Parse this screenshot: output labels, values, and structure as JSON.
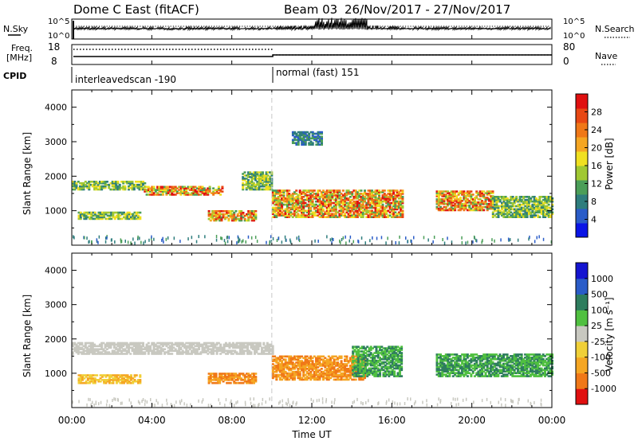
{
  "header": {
    "title": "Dome C East (fitACF)",
    "beam": "Beam 03",
    "dates": "26/Nov/2017 - 27/Nov/2017"
  },
  "top_panel": {
    "nsky_label": "N.Sky",
    "left_tick_top": "10^5",
    "left_tick_bottom": "10^0",
    "right_tick_top": "10^5",
    "right_tick_bottom": "10^0",
    "nsearch_label": "N.Search"
  },
  "freq_panel": {
    "label_line1": "Freq.",
    "label_line2": "[MHz]",
    "left_tick_top": "18",
    "left_tick_bottom": "8",
    "right_tick_top": "80",
    "right_tick_bottom": "0",
    "nave_label": "Nave"
  },
  "cpid": {
    "label": "CPID",
    "segment1": "interleavedscan -190",
    "segment2": "normal (fast) 151"
  },
  "power_panel": {
    "ylabel": "Slant Range [km]",
    "yticks": [
      "1000",
      "2000",
      "3000",
      "4000"
    ],
    "colorbar_label": "Power [dB]",
    "colorbar_ticks": [
      "4",
      "8",
      "12",
      "16",
      "20",
      "24",
      "28"
    ],
    "colors": [
      "#0a14e6",
      "#2a5cc8",
      "#2e7d7d",
      "#4b9e58",
      "#a0c832",
      "#f0e020",
      "#f5a623",
      "#f07818",
      "#e84814",
      "#e01010"
    ]
  },
  "velocity_panel": {
    "ylabel": "Slant Range [km]",
    "yticks": [
      "1000",
      "2000",
      "3000",
      "4000"
    ],
    "colorbar_label": "Velocity [m s⁻¹]",
    "colorbar_ticks": [
      "-1000",
      "-500",
      "-100",
      "-25",
      "25",
      "100",
      "500",
      "1000"
    ],
    "colors": [
      "#e01010",
      "#f07818",
      "#f5a623",
      "#f0d038",
      "#c8c8c0",
      "#50c040",
      "#2e7d5e",
      "#2a5cc8",
      "#1414d0"
    ]
  },
  "xaxis": {
    "ticks": [
      "00:00",
      "04:00",
      "08:00",
      "12:00",
      "16:00",
      "20:00",
      "00:00"
    ],
    "label": "Time UT"
  },
  "chart_data": {
    "type": "heatmap",
    "x_unit": "hours UT",
    "xlim": [
      0,
      24
    ],
    "ylim": [
      0,
      4500
    ],
    "mode_change_hour": 10,
    "power_regions": [
      {
        "t": [
          0,
          3.6
        ],
        "r": [
          1600,
          1850
        ],
        "level": "medium"
      },
      {
        "t": [
          3.6,
          7.5
        ],
        "r": [
          1450,
          1700
        ],
        "level": "high"
      },
      {
        "t": [
          0.3,
          3.4
        ],
        "r": [
          750,
          950
        ],
        "level": "medium"
      },
      {
        "t": [
          6.8,
          9.2
        ],
        "r": [
          700,
          1000
        ],
        "level": "high"
      },
      {
        "t": [
          8.5,
          10
        ],
        "r": [
          1600,
          2100
        ],
        "level": "medium"
      },
      {
        "t": [
          10,
          16.5
        ],
        "r": [
          800,
          1600
        ],
        "level": "high"
      },
      {
        "t": [
          11,
          12.5
        ],
        "r": [
          2900,
          3300
        ],
        "level": "low"
      },
      {
        "t": [
          18.2,
          21
        ],
        "r": [
          1000,
          1550
        ],
        "level": "high"
      },
      {
        "t": [
          21,
          24
        ],
        "r": [
          800,
          1400
        ],
        "level": "medium"
      }
    ],
    "velocity_regions": [
      {
        "t": [
          0,
          10
        ],
        "r": [
          1550,
          1900
        ],
        "band": "ground"
      },
      {
        "t": [
          0.3,
          3.4
        ],
        "r": [
          700,
          950
        ],
        "band": "-100 to -25"
      },
      {
        "t": [
          6.8,
          9.2
        ],
        "r": [
          700,
          1000
        ],
        "band": "-500 to -100"
      },
      {
        "t": [
          10,
          14.6
        ],
        "r": [
          800,
          1500
        ],
        "band": "-500 to -100"
      },
      {
        "t": [
          14,
          16.5
        ],
        "r": [
          900,
          1800
        ],
        "band": "100 to 500"
      },
      {
        "t": [
          18.2,
          24
        ],
        "r": [
          900,
          1550
        ],
        "band": "100 to 500"
      }
    ]
  }
}
